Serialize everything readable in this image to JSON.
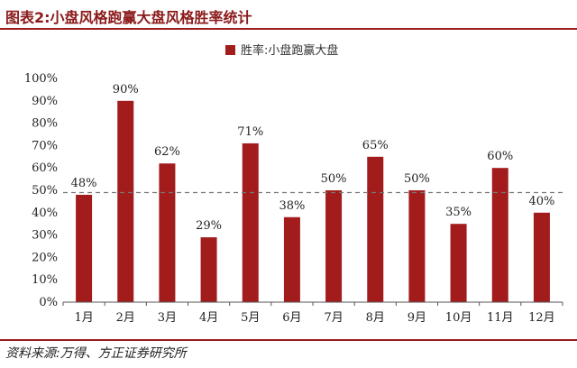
{
  "header": {
    "title": "图表2:小盘风格跑赢大盘风格胜率统计"
  },
  "footer": {
    "source": "资料来源:万得、方正证券研究所"
  },
  "colors": {
    "bar": "#a31c1c",
    "reference_line": "#777777",
    "accent": "#9b1c1c"
  },
  "chart_data": {
    "type": "bar",
    "categories": [
      "1月",
      "2月",
      "3月",
      "4月",
      "5月",
      "6月",
      "7月",
      "8月",
      "9月",
      "10月",
      "11月",
      "12月"
    ],
    "series": [
      {
        "name": "胜率:小盘跑赢大盘",
        "values": [
          48,
          90,
          62,
          29,
          71,
          38,
          50,
          65,
          50,
          35,
          60,
          40
        ]
      }
    ],
    "data_labels": [
      "48%",
      "90%",
      "62%",
      "29%",
      "71%",
      "38%",
      "50%",
      "65%",
      "50%",
      "35%",
      "60%",
      "40%"
    ],
    "yticks": [
      "0%",
      "10%",
      "20%",
      "30%",
      "40%",
      "50%",
      "60%",
      "70%",
      "80%",
      "90%",
      "100%"
    ],
    "ylim": [
      0,
      100
    ],
    "reference_line": {
      "value": 49,
      "style": "dashed"
    },
    "legend_position": "top-center",
    "grid": false
  }
}
